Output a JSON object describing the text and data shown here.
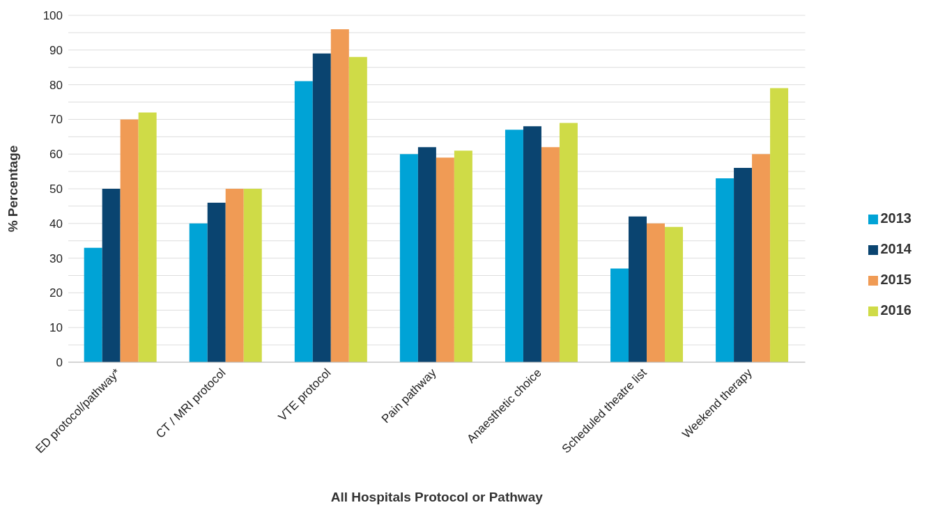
{
  "chart_data": {
    "type": "bar",
    "xlabel": "All Hospitals Protocol or Pathway",
    "ylabel": "% Percentage",
    "categories": [
      "ED protocol/pathway*",
      "CT / MRI protocol",
      "VTE protocol",
      "Pain pathway",
      "Anaesthetic choice",
      "Scheduled theatre list",
      "Weekend therapy"
    ],
    "series": [
      {
        "name": "2013",
        "color": "#00a3d6",
        "values": [
          33,
          40,
          81,
          60,
          67,
          27,
          53
        ]
      },
      {
        "name": "2014",
        "color": "#0a4470",
        "values": [
          50,
          46,
          89,
          62,
          68,
          42,
          56
        ]
      },
      {
        "name": "2015",
        "color": "#f09b55",
        "values": [
          70,
          50,
          96,
          59,
          62,
          40,
          60
        ]
      },
      {
        "name": "2016",
        "color": "#cfdb47",
        "values": [
          72,
          50,
          88,
          61,
          69,
          39,
          79
        ]
      }
    ],
    "ylim": [
      0,
      100
    ],
    "yticks": [
      0,
      {
        "value": 5,
        "label": null
      },
      10,
      {
        "value": 15,
        "label": null
      },
      20,
      {
        "value": 25,
        "label": null
      },
      30,
      {
        "value": 35,
        "label": null
      },
      40,
      {
        "value": 45,
        "label": null
      },
      50,
      {
        "value": 55,
        "label": null
      },
      60,
      {
        "value": 65,
        "label": null
      },
      70,
      {
        "value": 75,
        "label": null
      },
      80,
      {
        "value": 85,
        "label": null
      },
      90,
      {
        "value": 95,
        "label": null
      },
      100
    ],
    "grid": "y",
    "legend": "right"
  }
}
